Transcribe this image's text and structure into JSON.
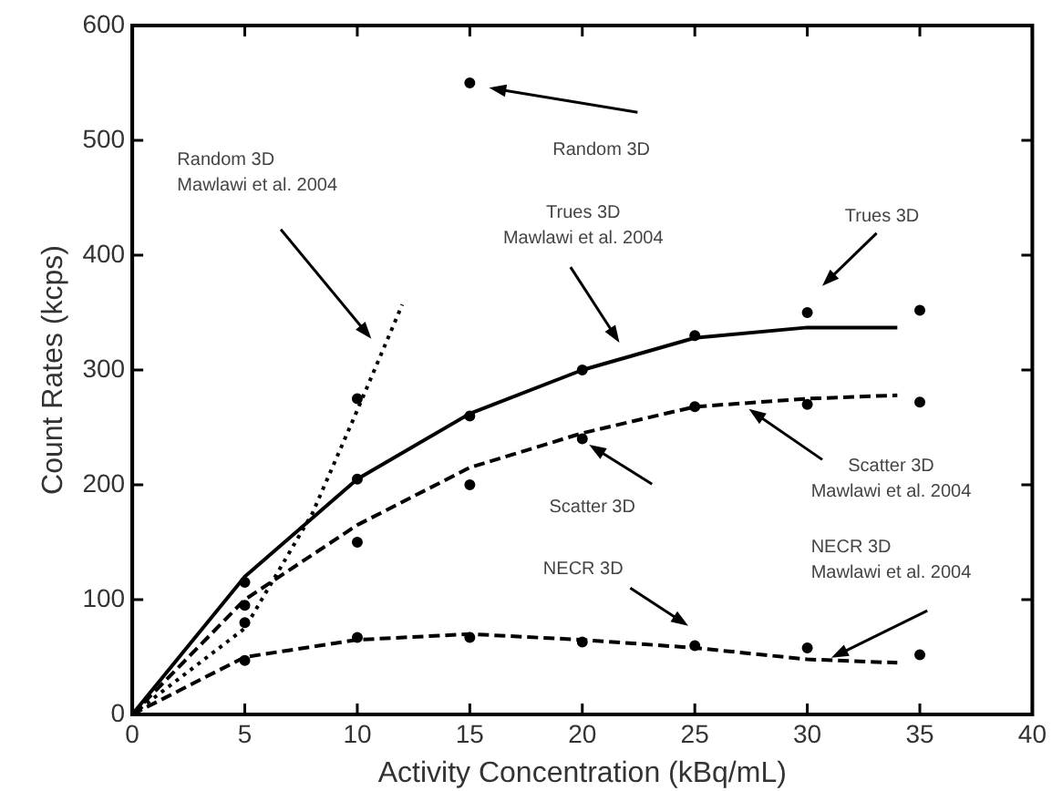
{
  "chart_data": {
    "type": "line",
    "xlabel": "Activity Concentration (kBq/mL)",
    "ylabel": "Count Rates (kcps)",
    "xlim": [
      0,
      40
    ],
    "xticks": [
      0,
      5,
      10,
      15,
      20,
      25,
      30,
      35,
      40
    ],
    "ylim": [
      0,
      600
    ],
    "yticks": [
      0,
      100,
      200,
      300,
      400,
      500,
      600
    ],
    "grid": false,
    "legend": false,
    "series": [
      {
        "type": "line",
        "color": "#000000",
        "line_style": "solid",
        "marker": "none",
        "x": [
          0,
          5,
          10,
          15,
          20,
          25,
          30,
          34
        ],
        "values": [
          0,
          120,
          205,
          262,
          300,
          328,
          337,
          337
        ]
      },
      {
        "type": "line",
        "color": "#000000",
        "line_style": "dashed",
        "marker": "none",
        "x": [
          0,
          5,
          10,
          15,
          20,
          25,
          30,
          34
        ],
        "values": [
          0,
          100,
          165,
          215,
          245,
          268,
          275,
          278
        ]
      },
      {
        "type": "line",
        "color": "#000000",
        "line_style": "dotted",
        "marker": "none",
        "x": [
          0,
          5,
          8,
          10,
          12
        ],
        "values": [
          0,
          75,
          175,
          265,
          357
        ]
      },
      {
        "type": "line",
        "color": "#000000",
        "line_style": "dashed",
        "marker": "none",
        "x": [
          0,
          5,
          10,
          15,
          20,
          25,
          30,
          34
        ],
        "values": [
          0,
          50,
          65,
          70,
          65,
          58,
          48,
          45
        ]
      },
      {
        "type": "scatter",
        "color": "#000000",
        "marker": "circle",
        "x": [
          5,
          10,
          15,
          20,
          25,
          30,
          35
        ],
        "values": [
          115,
          205,
          260,
          300,
          330,
          350,
          352
        ]
      },
      {
        "type": "scatter",
        "color": "#000000",
        "marker": "circle",
        "x": [
          5,
          10,
          15,
          20,
          25,
          30,
          35
        ],
        "values": [
          95,
          150,
          200,
          240,
          268,
          270,
          272
        ]
      },
      {
        "type": "scatter",
        "color": "#000000",
        "marker": "circle",
        "x": [
          5,
          10,
          15
        ],
        "values": [
          80,
          275,
          550
        ]
      },
      {
        "type": "scatter",
        "color": "#000000",
        "marker": "circle",
        "x": [
          5,
          10,
          15,
          20,
          25,
          30,
          35
        ],
        "values": [
          47,
          67,
          67,
          63,
          60,
          58,
          52
        ]
      }
    ],
    "annotations": [
      "Random 3D\nMawlawi et al. 2004",
      "Random 3D",
      "Trues 3D\nMawlawi et al. 2004",
      "Trues 3D",
      {
        "text": "Scatter 3D",
        "x": 20.3,
        "y": 235
      },
      {
        "text": "Scatter 3D\nMawlawi et al. 2004",
        "x": 27.4,
        "y": 266
      },
      "NECR 3D",
      "NECR 3D\nMawlawi et al. 2004"
    ]
  }
}
